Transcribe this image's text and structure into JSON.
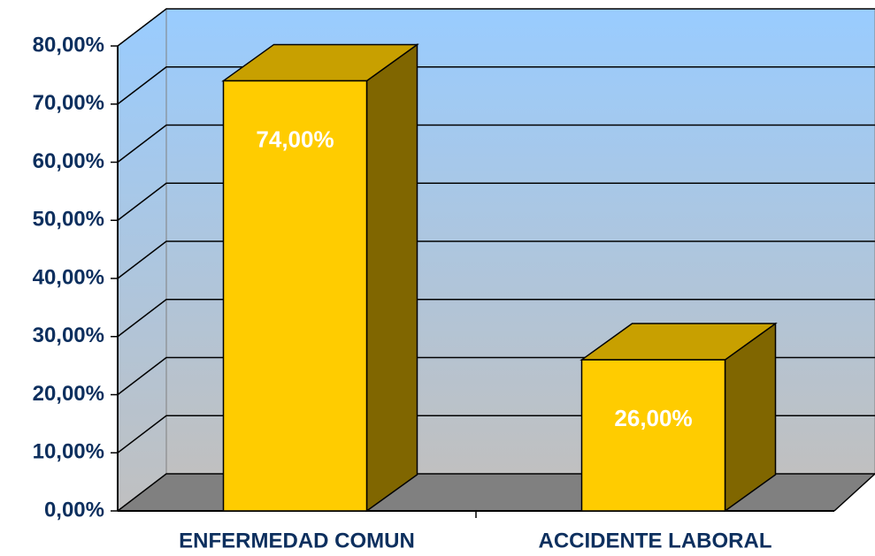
{
  "chart_data": {
    "type": "bar",
    "categories": [
      "ENFERMEDAD COMUN",
      "ACCIDENTE LABORAL"
    ],
    "values": [
      74,
      26
    ],
    "value_labels": [
      "74,00%",
      "26,00%"
    ],
    "color": "#ffcc00",
    "ylim": [
      0,
      80
    ],
    "yticks": [
      {
        "value": 0,
        "label": "0,00%"
      },
      {
        "value": 10,
        "label": "10,00%"
      },
      {
        "value": 20,
        "label": "20,00%"
      },
      {
        "value": 30,
        "label": "30,00%"
      },
      {
        "value": 40,
        "label": "40,00%"
      },
      {
        "value": 50,
        "label": "50,00%"
      },
      {
        "value": 60,
        "label": "60,00%"
      },
      {
        "value": 70,
        "label": "70,00%"
      },
      {
        "value": 80,
        "label": "80,00%"
      }
    ],
    "grid": true
  }
}
